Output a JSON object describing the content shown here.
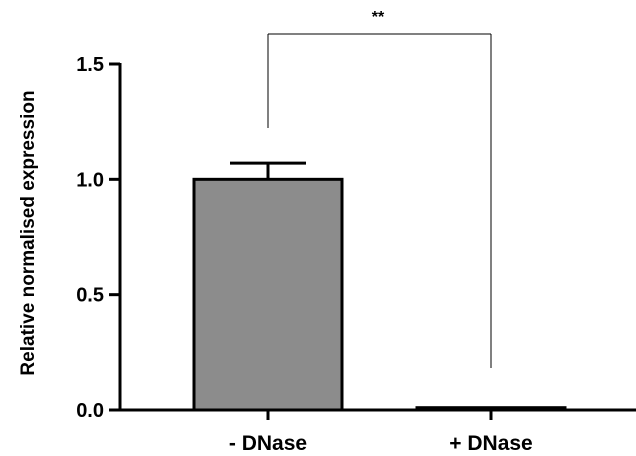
{
  "chart_data": {
    "type": "bar",
    "title": "",
    "xlabel": "",
    "ylabel": "Relative normalised expression",
    "ylim": [
      0,
      1.5
    ],
    "yticks": [
      0.0,
      0.5,
      1.0,
      1.5
    ],
    "ytick_labels": [
      "0.0",
      "0.5",
      "1.0",
      "1.5"
    ],
    "categories": [
      "- DNase",
      "+ DNase"
    ],
    "values": [
      1.0,
      0.01
    ],
    "errors": [
      0.07,
      0.0
    ],
    "bar_colors": [
      "#8c8c8c",
      "#8c8c8c"
    ],
    "grid": false,
    "legend": "none",
    "significance": {
      "label": "**",
      "between": [
        0,
        1
      ]
    }
  }
}
